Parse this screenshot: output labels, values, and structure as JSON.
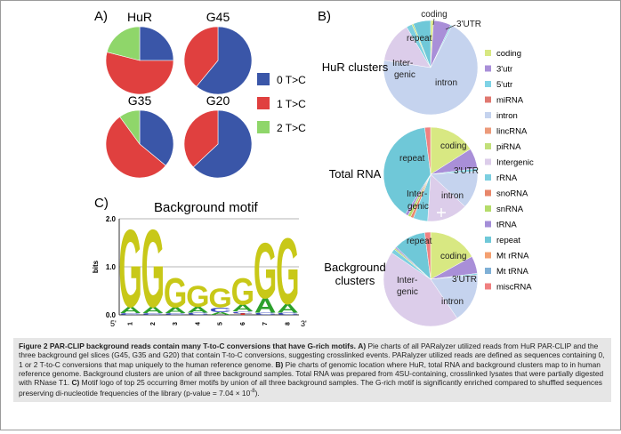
{
  "panels": {
    "a": {
      "label": "A)",
      "pies": [
        {
          "title": "HuR",
          "values": {
            "t0": 0.25,
            "t1": 0.54,
            "t2": 0.21
          }
        },
        {
          "title": "G45",
          "values": {
            "t0": 0.61,
            "t1": 0.39,
            "t2": 0.0
          }
        },
        {
          "title": "G35",
          "values": {
            "t0": 0.36,
            "t1": 0.54,
            "t2": 0.1
          }
        },
        {
          "title": "G20",
          "values": {
            "t0": 0.63,
            "t1": 0.37,
            "t2": 0.0
          }
        }
      ],
      "legend": [
        {
          "key": "t0",
          "label": "0  T>C",
          "color": "#3a56a8"
        },
        {
          "key": "t1",
          "label": "1  T>C",
          "color": "#e0403f"
        },
        {
          "key": "t2",
          "label": "2  T>C",
          "color": "#8fd66a"
        }
      ]
    },
    "b": {
      "label": "B)",
      "rows": [
        {
          "title_lines": [
            "HuR clusters"
          ],
          "slice_labels": [
            {
              "key": "coding",
              "text": "coding"
            },
            {
              "key": "utr3",
              "text": "3'UTR"
            },
            {
              "key": "repeat",
              "text": "repeat"
            },
            {
              "key": "intergenic1",
              "text": "Inter-"
            },
            {
              "key": "intergenic2",
              "text": "genic"
            },
            {
              "key": "intron",
              "text": "intron"
            }
          ],
          "values": {
            "coding": 0.01,
            "utr3": 0.06,
            "utr5": 0.005,
            "intron": 0.7,
            "intergenic": 0.14,
            "snRNA": 0.005,
            "rRNA": 0.02,
            "repeat": 0.06
          }
        },
        {
          "title_lines": [
            "Total RNA"
          ],
          "slice_labels": [
            {
              "key": "coding",
              "text": "coding"
            },
            {
              "key": "utr3",
              "text": "3'UTR"
            },
            {
              "key": "repeat",
              "text": "repeat"
            },
            {
              "key": "intergenic1",
              "text": "Inter-"
            },
            {
              "key": "intergenic2",
              "text": "genic"
            },
            {
              "key": "intron",
              "text": "intron"
            }
          ],
          "values": {
            "coding": 0.16,
            "utr3": 0.07,
            "utr5": 0.01,
            "intron": 0.13,
            "intergenic": 0.14,
            "snoRNA": 0.01,
            "snRNA": 0.01,
            "tRNA": 0.01,
            "rRNA": 0.05,
            "repeat": 0.39,
            "miscRNA": 0.02
          }
        },
        {
          "title_lines": [
            "Background",
            "clusters"
          ],
          "slice_labels": [
            {
              "key": "coding",
              "text": "coding"
            },
            {
              "key": "utr3",
              "text": "3'UTR"
            },
            {
              "key": "repeat",
              "text": "repeat"
            },
            {
              "key": "intergenic1",
              "text": "Inter-"
            },
            {
              "key": "intergenic2",
              "text": "genic"
            },
            {
              "key": "intron",
              "text": "intron"
            }
          ],
          "values": {
            "coding": 0.17,
            "utr3": 0.06,
            "utr5": 0.005,
            "intron": 0.17,
            "intergenic": 0.44,
            "snRNA": 0.005,
            "tRNA": 0.005,
            "rRNA": 0.015,
            "repeat": 0.11,
            "miscRNA": 0.02
          }
        }
      ],
      "legend": [
        {
          "key": "coding",
          "label": "coding",
          "color": "#d8e882"
        },
        {
          "key": "utr3",
          "label": "3'utr",
          "color": "#a98fd8"
        },
        {
          "key": "utr5",
          "label": "5'utr",
          "color": "#7fd3e6"
        },
        {
          "key": "miRNA",
          "label": "miRNA",
          "color": "#e07870"
        },
        {
          "key": "intron",
          "label": "intron",
          "color": "#c5d3ee"
        },
        {
          "key": "lincRNA",
          "label": "lincRNA",
          "color": "#ec9a7a"
        },
        {
          "key": "piRNA",
          "label": "piRNA",
          "color": "#c2e07a"
        },
        {
          "key": "intergenic",
          "label": "Intergenic",
          "color": "#dccdea"
        },
        {
          "key": "rRNA",
          "label": "rRNA",
          "color": "#7ccfe0"
        },
        {
          "key": "snoRNA",
          "label": "snoRNA",
          "color": "#e8876a"
        },
        {
          "key": "snRNA",
          "label": "snRNA",
          "color": "#b5dc6a"
        },
        {
          "key": "tRNA",
          "label": "tRNA",
          "color": "#a48ed8"
        },
        {
          "key": "repeat",
          "label": "repeat",
          "color": "#6fc8d8"
        },
        {
          "key": "MtrRNA",
          "label": "Mt rRNA",
          "color": "#f4a070"
        },
        {
          "key": "MttRNA",
          "label": "Mt tRNA",
          "color": "#7fb0d6"
        },
        {
          "key": "miscRNA",
          "label": "miscRNA",
          "color": "#f08080"
        }
      ]
    },
    "c": {
      "label": "C)",
      "title": "Background motif",
      "ylabel": "bits",
      "yticks": [
        "0.0",
        "1.0",
        "2.0"
      ],
      "ylim": [
        0,
        2
      ],
      "five_prime": "5'",
      "three_prime": "3'",
      "positions": [
        {
          "pos": "1",
          "stack": [
            {
              "letter": "G",
              "bits": 1.65
            },
            {
              "letter": "A",
              "bits": 0.13
            },
            {
              "letter": "C",
              "bits": 0.04
            }
          ]
        },
        {
          "pos": "2",
          "stack": [
            {
              "letter": "G",
              "bits": 1.65
            },
            {
              "letter": "A",
              "bits": 0.13
            },
            {
              "letter": "C",
              "bits": 0.04
            }
          ]
        },
        {
          "pos": "3",
          "stack": [
            {
              "letter": "G",
              "bits": 0.62
            },
            {
              "letter": "A",
              "bits": 0.12
            },
            {
              "letter": "C",
              "bits": 0.04
            }
          ]
        },
        {
          "pos": "4",
          "stack": [
            {
              "letter": "G",
              "bits": 0.45
            },
            {
              "letter": "A",
              "bits": 0.12
            },
            {
              "letter": "C",
              "bits": 0.05
            }
          ]
        },
        {
          "pos": "5",
          "stack": [
            {
              "letter": "G",
              "bits": 0.4
            },
            {
              "letter": "C",
              "bits": 0.1
            },
            {
              "letter": "A",
              "bits": 0.06
            }
          ]
        },
        {
          "pos": "6",
          "stack": [
            {
              "letter": "G",
              "bits": 0.56
            },
            {
              "letter": "A",
              "bits": 0.14
            },
            {
              "letter": "C",
              "bits": 0.04
            },
            {
              "letter": "T",
              "bits": 0.03
            }
          ]
        },
        {
          "pos": "7",
          "stack": [
            {
              "letter": "G",
              "bits": 1.18
            },
            {
              "letter": "A",
              "bits": 0.3
            },
            {
              "letter": "C",
              "bits": 0.05
            }
          ]
        },
        {
          "pos": "8",
          "stack": [
            {
              "letter": "G",
              "bits": 1.4
            },
            {
              "letter": "A",
              "bits": 0.18
            },
            {
              "letter": "C",
              "bits": 0.05
            }
          ]
        }
      ],
      "letter_colors": {
        "G": "#c8c818",
        "A": "#2ca02c",
        "C": "#3a4bc0",
        "T": "#e03020"
      }
    }
  },
  "caption": {
    "bold": "Figure 2 PAR-CLIP background reads contain many T-to-C conversions that have G-rich motifs.",
    "a_label": "A)",
    "a_text": "Pie charts of all PARalyzer utilized reads from HuR PAR-CLIP and the three background gel slices (G45, G35 and G20) that contain T-to-C conversions, suggesting crosslinked events. PARalyzer utilized reads are defined as sequences containing 0, 1 or 2 T-to-C conversions that map uniquely to the human reference genome.",
    "b_label": "B)",
    "b_text": "Pie charts of genomic location where HuR, total RNA and background clusters map to in human reference genome. Background clusters are union of all three background samples. Total RNA was prepared from 4SU-containing, crosslinked lysates that were partially digested with RNase T1.",
    "c_label": "C)",
    "c_text": "Motif logo of top 25 occurring 8mer motifs by union of all three background samples. The G-rich motif is significantly enriched compared to shuffled sequences preserving di-nucleotide frequencies of the library (p-value = 7.04 × 10",
    "exponent": "-8",
    "end": ")."
  }
}
